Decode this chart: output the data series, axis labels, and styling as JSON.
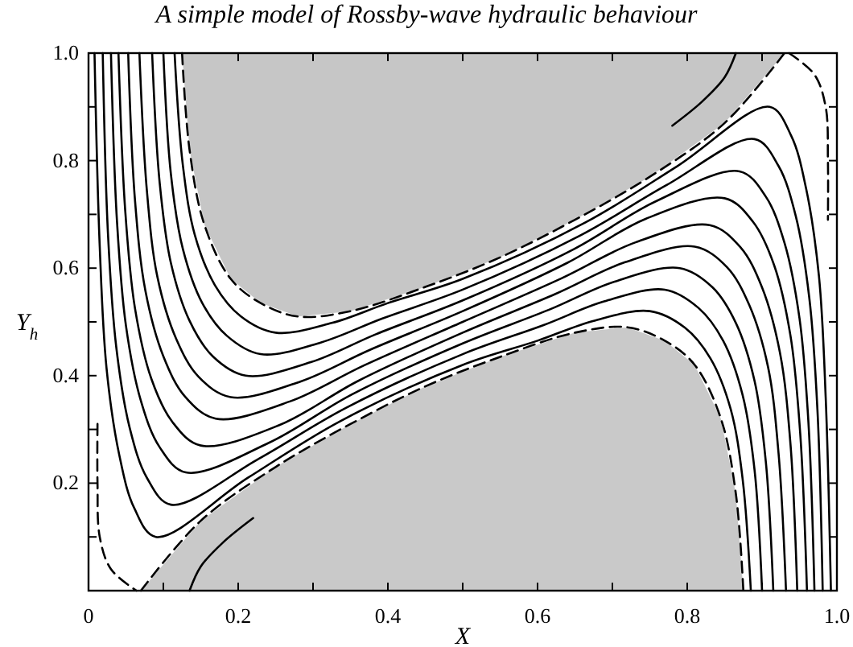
{
  "chart_data": {
    "type": "line",
    "title": "A simple model of Rossby-wave hydraulic behaviour",
    "xlabel": "X",
    "ylabel": "Y$_{h}$",
    "xlim": [
      0,
      1
    ],
    "ylim": [
      0,
      1
    ],
    "xticks": [
      0,
      {
        "value": 0.1,
        "label": null
      },
      0.2,
      {
        "value": 0.3,
        "label": null
      },
      0.4,
      {
        "value": 0.5,
        "label": null
      },
      0.6,
      {
        "value": 0.7,
        "label": null
      },
      0.8,
      {
        "value": 0.9,
        "label": null
      },
      {
        "value": 1,
        "label": "1.0"
      }
    ],
    "yticks": [
      {
        "value": 0.1,
        "label": null
      },
      0.2,
      {
        "value": 0.3,
        "label": null
      },
      0.4,
      {
        "value": 0.5,
        "label": null
      },
      0.6,
      {
        "value": 0.7,
        "label": null
      },
      0.8,
      {
        "value": 0.9,
        "label": null
      },
      {
        "value": 1,
        "label": "1.0"
      }
    ],
    "grid": false,
    "series": [
      {
        "color": "#000000",
        "line_style": "dashed",
        "x": [
          0.125,
          0.135,
          0.155,
          0.19,
          0.23,
          0.28,
          0.35,
          0.45,
          0.55,
          0.65,
          0.75,
          0.85,
          0.93
        ],
        "values": [
          1,
          0.82,
          0.68,
          0.58,
          0.535,
          0.51,
          0.52,
          0.565,
          0.62,
          0.69,
          0.77,
          0.87,
          1
        ],
        "lower": [
          1,
          0.82,
          0.68,
          0.58,
          0.535,
          0.51,
          0.52,
          0.565,
          0.62,
          0.69,
          0.77,
          0.87,
          1
        ],
        "upper": [
          1,
          1,
          1,
          1,
          1,
          1,
          1,
          1,
          1,
          1,
          1,
          1,
          1
        ]
      },
      {
        "color": "#000000",
        "line_style": "dashed",
        "x": [
          0.07,
          0.15,
          0.25,
          0.35,
          0.45,
          0.55,
          0.65,
          0.72,
          0.77,
          0.81,
          0.845,
          0.865,
          0.875
        ],
        "values": [
          0,
          0.13,
          0.23,
          0.31,
          0.38,
          0.435,
          0.48,
          0.49,
          0.465,
          0.42,
          0.32,
          0.18,
          0
        ],
        "lower": [
          0,
          0,
          0,
          0,
          0,
          0,
          0,
          0,
          0,
          0,
          0,
          0,
          0
        ],
        "upper": [
          0,
          0.13,
          0.23,
          0.31,
          0.38,
          0.435,
          0.48,
          0.49,
          0.465,
          0.42,
          0.32,
          0.18,
          0
        ]
      },
      {
        "color": "#000000",
        "line_style": "dashed",
        "x": [
          0.012,
          0.012,
          0.015,
          0.03,
          0.064
        ],
        "values": [
          0.31,
          0.2,
          0.1,
          0.04,
          0
        ]
      },
      {
        "color": "#000000",
        "line_style": "dashed",
        "x": [
          0.936,
          0.97,
          0.985,
          0.988,
          0.988
        ],
        "values": [
          1,
          0.96,
          0.9,
          0.8,
          0.69
        ]
      },
      {
        "color": "#000000",
        "line_style": "solid",
        "x": [
          0.865,
          0.85,
          0.82,
          0.78
        ],
        "values": [
          1,
          0.955,
          0.91,
          0.865
        ]
      },
      {
        "color": "#000000",
        "line_style": "solid",
        "x": [
          0.135,
          0.15,
          0.18,
          0.22
        ],
        "values": [
          0,
          0.045,
          0.09,
          0.135
        ]
      },
      {
        "color": "#000000",
        "line_style": "solid",
        "x": [
          0.008,
          0.015,
          0.024,
          0.041,
          0.061,
          0.09,
          0.213,
          0.336,
          0.5,
          0.6,
          0.675,
          0.75,
          0.797,
          0.831,
          0.858,
          0.874,
          0.885
        ],
        "values": [
          1,
          0.64,
          0.415,
          0.253,
          0.154,
          0.1,
          0.21,
          0.315,
          0.42,
          0.465,
          0.502,
          0.52,
          0.489,
          0.432,
          0.338,
          0.208,
          0
        ]
      },
      {
        "color": "#000000",
        "line_style": "solid",
        "x": [
          0.019,
          0.026,
          0.037,
          0.055,
          0.078,
          0.11,
          0.227,
          0.344,
          0.5,
          0.608,
          0.689,
          0.77,
          0.815,
          0.848,
          0.874,
          0.89,
          0.9
        ],
        "values": [
          1,
          0.664,
          0.454,
          0.303,
          0.21,
          0.16,
          0.245,
          0.34,
          0.44,
          0.494,
          0.538,
          0.56,
          0.526,
          0.465,
          0.364,
          0.224,
          0
        ]
      },
      {
        "color": "#000000",
        "line_style": "solid",
        "x": [
          0.03,
          0.038,
          0.05,
          0.07,
          0.095,
          0.13,
          0.241,
          0.352,
          0.5,
          0.616,
          0.703,
          0.79,
          0.834,
          0.865,
          0.89,
          0.905,
          0.915
        ],
        "values": [
          1,
          0.688,
          0.493,
          0.353,
          0.267,
          0.22,
          0.275,
          0.365,
          0.46,
          0.523,
          0.575,
          0.6,
          0.564,
          0.498,
          0.39,
          0.24,
          0
        ]
      },
      {
        "color": "#000000",
        "line_style": "solid",
        "x": [
          0.04,
          0.049,
          0.062,
          0.084,
          0.112,
          0.15,
          0.255,
          0.36,
          0.5,
          0.624,
          0.717,
          0.81,
          0.853,
          0.883,
          0.908,
          0.922,
          0.932
        ],
        "values": [
          1,
          0.708,
          0.526,
          0.394,
          0.314,
          0.27,
          0.308,
          0.39,
          0.48,
          0.552,
          0.611,
          0.64,
          0.602,
          0.531,
          0.416,
          0.256,
          0
        ]
      },
      {
        "color": "#000000",
        "line_style": "solid",
        "x": [
          0.053,
          0.062,
          0.076,
          0.1,
          0.129,
          0.17,
          0.269,
          0.368,
          0.5,
          0.632,
          0.731,
          0.83,
          0.871,
          0.9,
          0.924,
          0.938,
          0.947
        ],
        "values": [
          1,
          0.728,
          0.558,
          0.436,
          0.361,
          0.32,
          0.352,
          0.419,
          0.5,
          0.581,
          0.648,
          0.68,
          0.639,
          0.564,
          0.442,
          0.272,
          0
        ]
      },
      {
        "color": "#000000",
        "line_style": "solid",
        "x": [
          0.068,
          0.078,
          0.092,
          0.117,
          0.147,
          0.19,
          0.283,
          0.376,
          0.5,
          0.64,
          0.745,
          0.85,
          0.888,
          0.916,
          0.938,
          0.951,
          0.96
        ],
        "values": [
          1,
          0.744,
          0.584,
          0.469,
          0.398,
          0.36,
          0.389,
          0.448,
          0.52,
          0.61,
          0.692,
          0.73,
          0.686,
          0.606,
          0.474,
          0.292,
          0
        ]
      },
      {
        "color": "#000000",
        "line_style": "solid",
        "x": [
          0.085,
          0.095,
          0.11,
          0.135,
          0.166,
          0.21,
          0.297,
          0.384,
          0.5,
          0.648,
          0.759,
          0.87,
          0.905,
          0.93,
          0.95,
          0.962,
          0.97
        ],
        "values": [
          1,
          0.76,
          0.61,
          0.502,
          0.436,
          0.4,
          0.425,
          0.477,
          0.54,
          0.635,
          0.725,
          0.78,
          0.733,
          0.647,
          0.507,
          0.312,
          0
        ]
      },
      {
        "color": "#000000",
        "line_style": "solid",
        "x": [
          0.1,
          0.11,
          0.126,
          0.152,
          0.185,
          0.23,
          0.311,
          0.392,
          0.5,
          0.656,
          0.773,
          0.89,
          0.922,
          0.945,
          0.963,
          0.974,
          0.981
        ],
        "values": [
          1,
          0.776,
          0.636,
          0.535,
          0.474,
          0.44,
          0.462,
          0.506,
          0.56,
          0.66,
          0.755,
          0.84,
          0.79,
          0.697,
          0.546,
          0.336,
          0
        ]
      },
      {
        "color": "#000000",
        "line_style": "solid",
        "x": [
          0.115,
          0.126,
          0.142,
          0.169,
          0.203,
          0.25,
          0.325,
          0.4,
          0.5,
          0.664,
          0.787,
          0.91,
          0.939,
          0.959,
          0.976,
          0.985,
          0.992
        ],
        "values": [
          1,
          0.792,
          0.662,
          0.568,
          0.511,
          0.48,
          0.498,
          0.535,
          0.58,
          0.685,
          0.79,
          0.9,
          0.846,
          0.747,
          0.585,
          0.36,
          0
        ]
      }
    ]
  }
}
